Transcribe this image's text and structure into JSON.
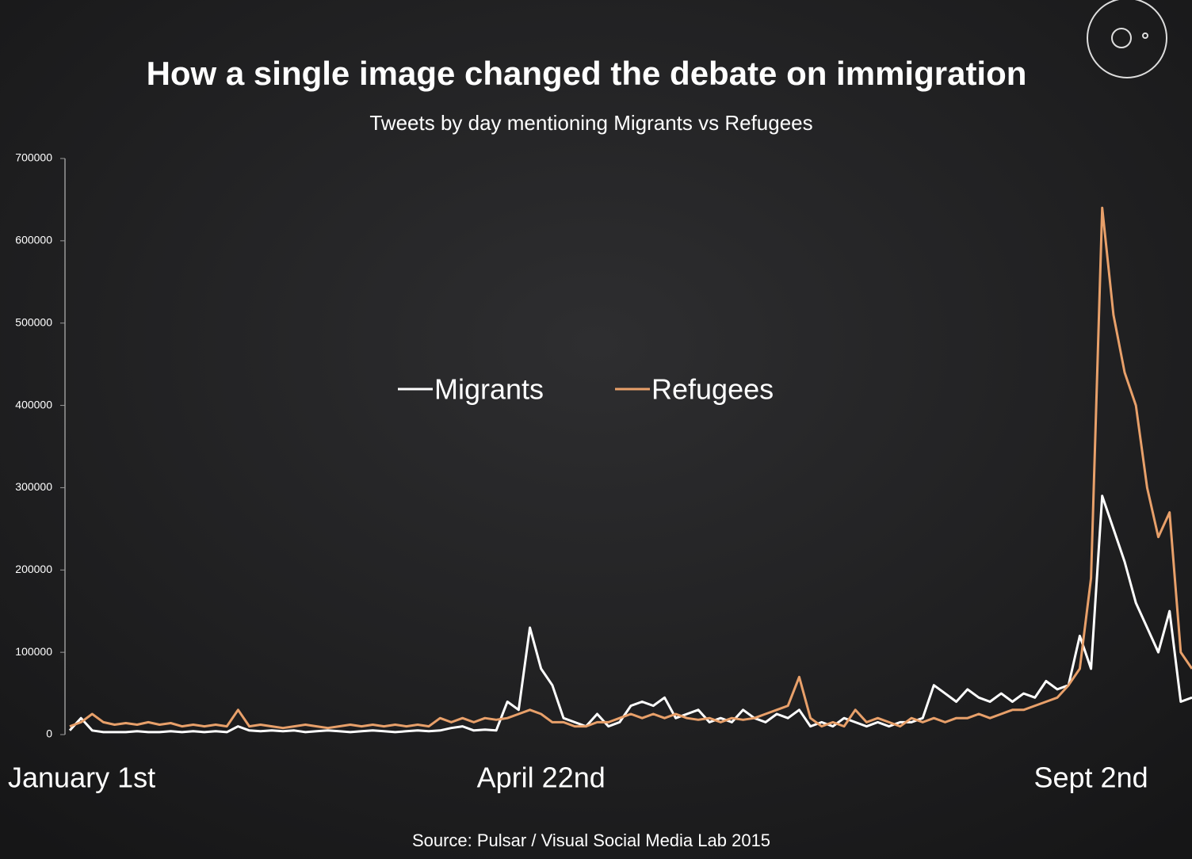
{
  "chart_data": {
    "type": "line",
    "title": "How a single image changed the debate on immigration",
    "subtitle": "Tweets by day mentioning Migrants vs Refugees",
    "source": "Source: Pulsar / Visual Social Media Lab 2015",
    "categories": [
      "January 1st",
      null,
      null,
      null,
      null,
      null,
      null,
      null,
      null,
      null,
      null,
      null,
      null,
      null,
      null,
      null,
      null,
      null,
      null,
      null,
      null,
      null,
      null,
      null,
      null,
      null,
      null,
      null,
      null,
      null,
      null,
      null,
      null,
      null,
      null,
      null,
      null,
      null,
      null,
      null,
      null,
      null,
      "April 22nd",
      null,
      null,
      null,
      null,
      null,
      null,
      null,
      null,
      null,
      null,
      null,
      null,
      null,
      null,
      null,
      null,
      null,
      null,
      null,
      null,
      null,
      null,
      null,
      null,
      null,
      null,
      null,
      null,
      null,
      null,
      null,
      null,
      null,
      null,
      null,
      null,
      null,
      null,
      null,
      null,
      null,
      null,
      null,
      null,
      null,
      null,
      null,
      null,
      "Sept 2nd",
      null,
      null,
      null,
      null,
      null,
      null,
      null,
      null,
      null
    ],
    "series": [
      {
        "name": "Migrants",
        "color": "#ffffff",
        "values": [
          5000,
          20000,
          5000,
          3000,
          3000,
          3000,
          4000,
          3000,
          3000,
          4000,
          3000,
          4000,
          3000,
          4000,
          3000,
          10000,
          5000,
          4000,
          5000,
          4000,
          5000,
          3000,
          4000,
          5000,
          4000,
          3000,
          4000,
          5000,
          4000,
          3000,
          4000,
          5000,
          4000,
          5000,
          8000,
          10000,
          5000,
          6000,
          5000,
          40000,
          30000,
          130000,
          80000,
          60000,
          20000,
          15000,
          10000,
          25000,
          10000,
          15000,
          35000,
          40000,
          35000,
          45000,
          20000,
          25000,
          30000,
          15000,
          20000,
          15000,
          30000,
          20000,
          15000,
          25000,
          20000,
          30000,
          10000,
          15000,
          10000,
          20000,
          15000,
          10000,
          15000,
          10000,
          15000,
          15000,
          20000,
          60000,
          50000,
          40000,
          55000,
          45000,
          40000,
          50000,
          40000,
          50000,
          45000,
          65000,
          55000,
          60000,
          120000,
          80000,
          290000,
          250000,
          210000,
          160000,
          130000,
          100000,
          150000,
          40000,
          45000
        ]
      },
      {
        "name": "Refugees",
        "color": "#e8a06a",
        "values": [
          10000,
          15000,
          25000,
          15000,
          12000,
          14000,
          12000,
          15000,
          12000,
          14000,
          10000,
          12000,
          10000,
          12000,
          10000,
          30000,
          10000,
          12000,
          10000,
          8000,
          10000,
          12000,
          10000,
          8000,
          10000,
          12000,
          10000,
          12000,
          10000,
          12000,
          10000,
          12000,
          10000,
          20000,
          15000,
          20000,
          15000,
          20000,
          18000,
          20000,
          25000,
          30000,
          25000,
          15000,
          15000,
          10000,
          10000,
          15000,
          15000,
          20000,
          25000,
          20000,
          25000,
          20000,
          25000,
          20000,
          18000,
          20000,
          15000,
          20000,
          18000,
          20000,
          25000,
          30000,
          35000,
          70000,
          20000,
          10000,
          15000,
          10000,
          30000,
          15000,
          20000,
          15000,
          10000,
          20000,
          15000,
          20000,
          15000,
          20000,
          20000,
          25000,
          20000,
          25000,
          30000,
          30000,
          35000,
          40000,
          45000,
          60000,
          80000,
          190000,
          640000,
          510000,
          440000,
          400000,
          300000,
          240000,
          270000,
          100000,
          80000
        ]
      }
    ],
    "ylim": [
      0,
      700000
    ],
    "yticks": [
      0,
      100000,
      200000,
      300000,
      400000,
      500000,
      600000,
      700000
    ]
  }
}
